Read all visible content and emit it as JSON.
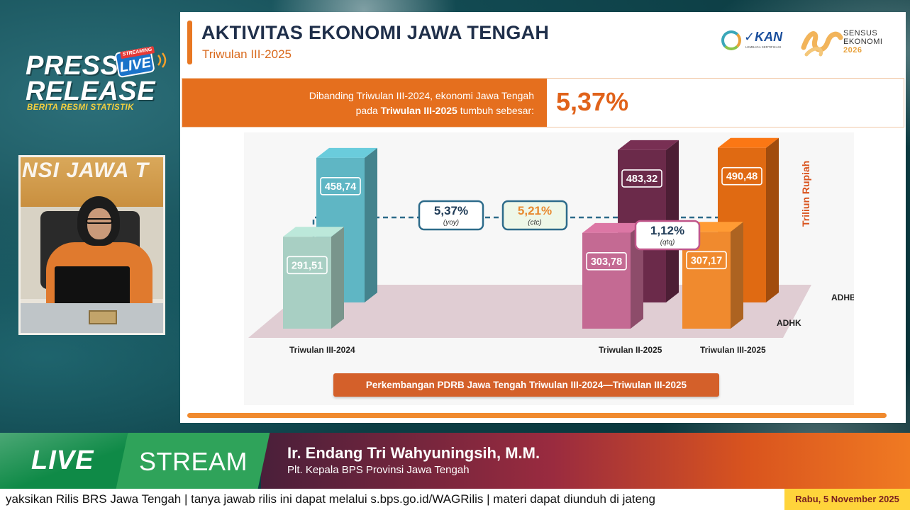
{
  "press": {
    "line1": "PRESS",
    "line2": "RELEASE",
    "sub": "BERITA RESMI STATISTIK",
    "badge": "LIVE",
    "badge_top": "STREAMING"
  },
  "webcam": {
    "wall_text": "NSI JAWA T"
  },
  "slide": {
    "title": "AKTIVITAS EKONOMI JAWA TENGAH",
    "subtitle": "Triwulan III-2025",
    "logo_kan": "KAN",
    "logo_kan_small": "LEMBAGA SERTIFIKASI",
    "logo_sensus_1": "SENSUS",
    "logo_sensus_2": "EKONOMI",
    "logo_sensus_3": "2026",
    "growth_line1": "Dibanding Triwulan III-2024, ekonomi Jawa Tengah",
    "growth_line2_pre": "pada ",
    "growth_line2_bold": "Triwulan III-2025",
    "growth_line2_post": " tumbuh sebesar:",
    "growth_value": "5,37%",
    "unit_label": "Triliun Rupiah",
    "caption": "Perkembangan PDRB Jawa Tengah Triwulan III-2024—Triwulan III-2025",
    "colors": {
      "accent": "#e87722",
      "adhk_2024": "#a8cfc3",
      "adhb_2024": "#5fb6c4",
      "adhk_q2": "#c46a93",
      "adhb_q2": "#6b2a4a",
      "adhk_q3": "#f08a2e",
      "adhb_q3": "#e06a12"
    }
  },
  "chart_data": {
    "type": "bar",
    "categories": [
      "Triwulan III-2024",
      "Triwulan II-2025",
      "Triwulan III-2025"
    ],
    "series": [
      {
        "name": "ADHK",
        "values": [
          291.51,
          303.78,
          307.17
        ],
        "labels": [
          "291,51",
          "303,78",
          "307,17"
        ]
      },
      {
        "name": "ADHB",
        "values": [
          458.74,
          483.32,
          490.48
        ],
        "labels": [
          "458,74",
          "483,32",
          "490,48"
        ]
      }
    ],
    "annotations": [
      {
        "value": "5,37%",
        "note": "(yoy)"
      },
      {
        "value": "5,21%",
        "note": "(ctc)"
      },
      {
        "value": "1,12%",
        "note": "(qtq)"
      }
    ],
    "ylabel": "Triliun Rupiah",
    "title": "Perkembangan PDRB Jawa Tengah Triwulan III-2024—Triwulan III-2025"
  },
  "lower_third": {
    "live": "LIVE",
    "stream": "STREAM",
    "name": "Ir. Endang Tri Wahyuningsih, M.M.",
    "role": "Plt. Kepala BPS Provinsi Jawa Tengah"
  },
  "ticker": {
    "text": "yaksikan Rilis BRS Jawa Tengah   |   tanya jawab rilis ini dapat melalui s.bps.go.id/WAGRilis  |  materi dapat diunduh di jateng",
    "date": "Rabu, 5 November 2025"
  }
}
